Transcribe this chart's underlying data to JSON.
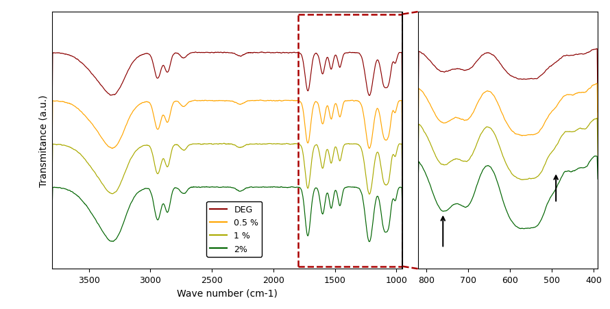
{
  "colors": {
    "DEG": "#8B0000",
    "0.5%": "#FFA500",
    "1%": "#AAAA00",
    "2%": "#006400"
  },
  "legend_labels": [
    "DEG",
    "0.5 %",
    "1 %",
    "2%"
  ],
  "ylabel": "Transmitance (a.u.)",
  "xlabel": "Wave number (cm-1)",
  "left_xlim": [
    3800,
    950
  ],
  "right_xlim": [
    820,
    390
  ],
  "box_color": "#AA0000",
  "tick_fontsize": 9,
  "label_fontsize": 10
}
